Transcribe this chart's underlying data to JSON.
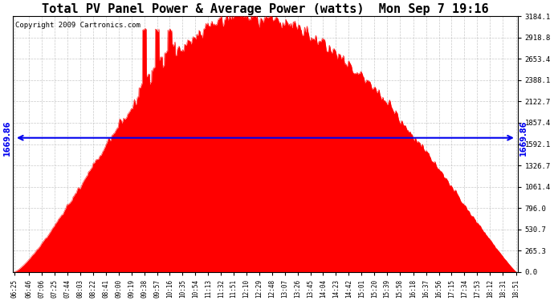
{
  "title": "Total PV Panel Power & Average Power (watts)  Mon Sep 7 19:16",
  "copyright": "Copyright 2009 Cartronics.com",
  "avg_power": 1669.86,
  "y_max": 3184.1,
  "y_min": 0.0,
  "y_ticks": [
    0.0,
    265.3,
    530.7,
    796.0,
    1061.4,
    1326.7,
    1592.1,
    1857.4,
    2122.7,
    2388.1,
    2653.4,
    2918.8,
    3184.1
  ],
  "x_labels": [
    "06:25",
    "06:46",
    "07:06",
    "07:25",
    "07:44",
    "08:03",
    "08:22",
    "08:41",
    "09:00",
    "09:19",
    "09:38",
    "09:57",
    "10:16",
    "10:35",
    "10:54",
    "11:13",
    "11:32",
    "11:51",
    "12:10",
    "12:29",
    "12:48",
    "13:07",
    "13:26",
    "13:45",
    "14:04",
    "14:23",
    "14:42",
    "15:01",
    "15:20",
    "15:39",
    "15:58",
    "16:18",
    "16:37",
    "16:56",
    "17:15",
    "17:34",
    "17:53",
    "18:12",
    "18:31",
    "18:51"
  ],
  "fill_color": "#FF0000",
  "line_color": "#0000EE",
  "background_color": "#FFFFFF",
  "grid_color": "#BBBBBB",
  "title_fontsize": 11,
  "copyright_fontsize": 6.5,
  "avg_label_fontsize": 7
}
